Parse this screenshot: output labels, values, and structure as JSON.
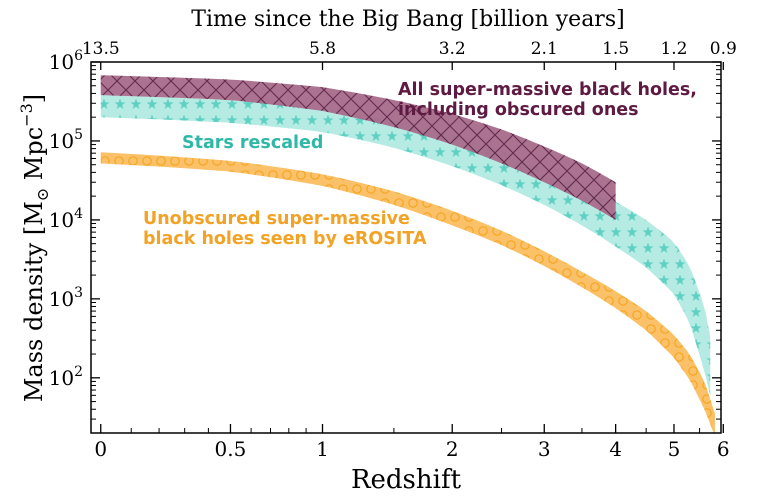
{
  "chart_data": {
    "type": "area",
    "title": "",
    "xlabel": "Redshift",
    "ylabel": "Mass density [M",
    "ylabel_sub": "⊙",
    "ylabel_mid": " Mpc",
    "ylabel_sup": "−3",
    "ylabel_end": "]",
    "top_xlabel": "Time since the Big Bang [billion years]",
    "x_scale": "log1p",
    "y_scale": "log",
    "xlim": [
      -0.03,
      5.95
    ],
    "ylim": [
      20,
      1000000
    ],
    "x_ticks": [
      {
        "value": 0,
        "label": "0"
      },
      {
        "value": 0.5,
        "label": "0.5"
      },
      {
        "value": 1,
        "label": "1"
      },
      {
        "value": 2,
        "label": "2"
      },
      {
        "value": 3,
        "label": "3"
      },
      {
        "value": 4,
        "label": "4"
      },
      {
        "value": 5,
        "label": "5"
      },
      {
        "value": 6,
        "label": "6"
      }
    ],
    "x_minor_ticks": [
      0.1,
      0.2,
      0.3,
      0.4,
      0.6,
      0.7,
      0.8,
      0.9,
      1.5,
      2.5,
      3.5,
      4.5,
      5.5
    ],
    "top_ticks": [
      {
        "z": 0,
        "label": "13.5"
      },
      {
        "z": 1,
        "label": "5.8"
      },
      {
        "z": 2,
        "label": "3.2"
      },
      {
        "z": 3,
        "label": "2.1"
      },
      {
        "z": 4,
        "label": "1.5"
      },
      {
        "z": 5,
        "label": "1.2"
      },
      {
        "z": 6,
        "label": "0.9"
      }
    ],
    "y_ticks": [
      {
        "value": 100,
        "base": "10",
        "exp": "2"
      },
      {
        "value": 1000,
        "base": "10",
        "exp": "3"
      },
      {
        "value": 10000,
        "base": "10",
        "exp": "4"
      },
      {
        "value": 100000,
        "base": "10",
        "exp": "5"
      },
      {
        "value": 1000000,
        "base": "10",
        "exp": "6"
      }
    ],
    "grid": false,
    "series": [
      {
        "name": "Unobscured super-massive black holes seen by eROSITA",
        "color": "#f5a623",
        "pattern": "circles",
        "x": [
          0,
          0.5,
          1,
          1.5,
          2,
          2.5,
          3,
          3.5,
          4,
          4.5,
          5,
          5.3,
          5.6,
          5.82
        ],
        "upper": [
          72000,
          56000,
          38000,
          23000,
          13000,
          7300,
          4000,
          2200,
          1250,
          700,
          350,
          200,
          90,
          35
        ],
        "lower": [
          52000,
          41000,
          27000,
          15500,
          8500,
          4800,
          2600,
          1400,
          760,
          400,
          180,
          95,
          40,
          18
        ]
      },
      {
        "name": "Stars rescaled",
        "color": "#3fc1b4",
        "pattern": "stars",
        "x": [
          0,
          0.5,
          1,
          1.5,
          2,
          2.5,
          3,
          3.5,
          4,
          4.5,
          5,
          5.3,
          5.6,
          5.72
        ],
        "upper": [
          380000,
          330000,
          260000,
          180000,
          118000,
          75000,
          44000,
          27000,
          17000,
          10000,
          5200,
          2600,
          800,
          330
        ],
        "lower": [
          200000,
          170000,
          130000,
          82000,
          48000,
          27500,
          15500,
          8500,
          4600,
          2500,
          1150,
          500,
          120,
          60
        ]
      },
      {
        "name": "All super-massive black holes, including obscured ones",
        "color": "#7b2d5c",
        "pattern": "crosshatch",
        "x": [
          0,
          0.5,
          1,
          1.5,
          2,
          2.5,
          3,
          3.5,
          4
        ],
        "upper": [
          680000,
          600000,
          480000,
          330000,
          220000,
          140000,
          85000,
          52000,
          30000
        ],
        "lower": [
          380000,
          330000,
          240000,
          150000,
          90000,
          52000,
          30000,
          17500,
          10000
        ]
      }
    ],
    "annotations": [
      {
        "id": "smbh",
        "text": [
          "All super-massive black holes,",
          "including obscured ones"
        ],
        "color": "#5e1a42"
      },
      {
        "id": "stars",
        "text": [
          "Stars rescaled"
        ],
        "color": "#2fb8a8"
      },
      {
        "id": "unobs",
        "text": [
          "Unobscured super-massive",
          "black holes seen by eROSITA"
        ],
        "color": "#f2a225"
      }
    ]
  }
}
